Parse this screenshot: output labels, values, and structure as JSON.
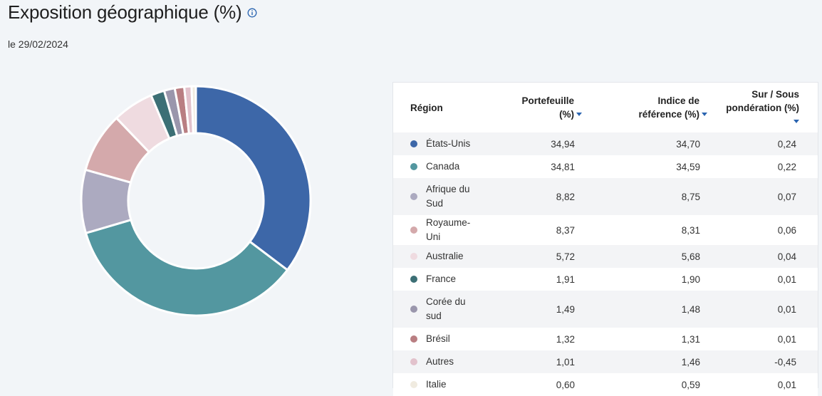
{
  "header": {
    "title": "Exposition géographique (%)",
    "date": "le 29/02/2024",
    "info_icon": "info-icon"
  },
  "table": {
    "columns": {
      "region": "Région",
      "portfolio": "Portefeuille (%)",
      "benchmark": "Indice de référence (%)",
      "over_under": "Sur / Sous pondération (%)"
    },
    "rows": [
      {
        "region": "États-Unis",
        "portfolio": "34,94",
        "benchmark": "34,70",
        "diff": "0,24",
        "color": "#3d67a8"
      },
      {
        "region": "Canada",
        "portfolio": "34,81",
        "benchmark": "34,59",
        "diff": "0,22",
        "color": "#5397a0"
      },
      {
        "region": "Afrique du Sud",
        "portfolio": "8,82",
        "benchmark": "8,75",
        "diff": "0,07",
        "color": "#acaac0"
      },
      {
        "region": "Royaume-Uni",
        "portfolio": "8,37",
        "benchmark": "8,31",
        "diff": "0,06",
        "color": "#d4a9ab"
      },
      {
        "region": "Australie",
        "portfolio": "5,72",
        "benchmark": "5,68",
        "diff": "0,04",
        "color": "#efdbe0"
      },
      {
        "region": "France",
        "portfolio": "1,91",
        "benchmark": "1,90",
        "diff": "0,01",
        "color": "#3c6f75"
      },
      {
        "region": "Corée du sud",
        "portfolio": "1,49",
        "benchmark": "1,48",
        "diff": "0,01",
        "color": "#9a96ac"
      },
      {
        "region": "Brésil",
        "portfolio": "1,32",
        "benchmark": "1,31",
        "diff": "0,01",
        "color": "#b97e82"
      },
      {
        "region": "Autres",
        "portfolio": "1,01",
        "benchmark": "1,46",
        "diff": "-0,45",
        "color": "#e2c2cc"
      },
      {
        "region": "Italie",
        "portfolio": "0,60",
        "benchmark": "0,59",
        "diff": "0,01",
        "color": "#f0ebe0"
      }
    ]
  },
  "chart_data": {
    "type": "pie",
    "title": "Exposition géographique (%)",
    "categories": [
      "États-Unis",
      "Canada",
      "Afrique du Sud",
      "Royaume-Uni",
      "Australie",
      "France",
      "Corée du sud",
      "Brésil",
      "Autres",
      "Italie"
    ],
    "values": [
      34.94,
      34.81,
      8.82,
      8.37,
      5.72,
      1.91,
      1.49,
      1.32,
      1.01,
      0.6
    ],
    "colors": [
      "#3d67a8",
      "#5397a0",
      "#acaac0",
      "#d4a9ab",
      "#efdbe0",
      "#3c6f75",
      "#9a96ac",
      "#b97e82",
      "#e2c2cc",
      "#f0ebe0"
    ],
    "donut": true
  }
}
